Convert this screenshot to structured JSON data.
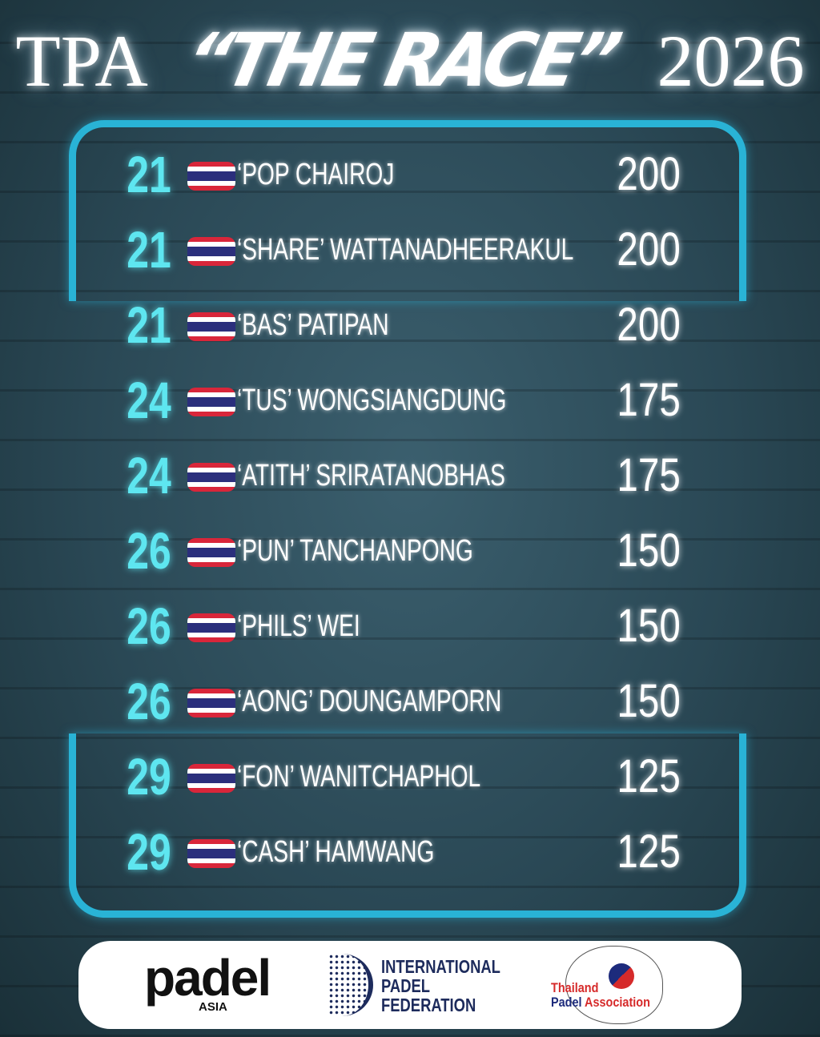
{
  "title": {
    "prefix": "TPA",
    "race": "“THE RACE”",
    "year": "2026"
  },
  "colors": {
    "accent": "#29b3d6",
    "rank": "#5ee6f0",
    "text": "#ffffff",
    "flag_red": "#d9263a",
    "flag_blue": "#2b2f7c"
  },
  "rows": [
    {
      "rank": "21",
      "flag": "thailand-flag",
      "name": "‘POP CHAIROJ",
      "points": "200"
    },
    {
      "rank": "21",
      "flag": "thailand-flag",
      "name": "‘SHARE’ WATTANADHEERAKUL",
      "points": "200"
    },
    {
      "rank": "21",
      "flag": "thailand-flag",
      "name": "‘BAS’ PATIPAN",
      "points": "200"
    },
    {
      "rank": "24",
      "flag": "thailand-flag",
      "name": "‘TUS’ WONGSIANGDUNG",
      "points": "175"
    },
    {
      "rank": "24",
      "flag": "thailand-flag",
      "name": "‘ATITH’ SRIRATANOBHAS",
      "points": "175"
    },
    {
      "rank": "26",
      "flag": "thailand-flag",
      "name": "‘PUN’ TANCHANPONG",
      "points": "150"
    },
    {
      "rank": "26",
      "flag": "thailand-flag",
      "name": "‘PHILS’ WEI",
      "points": "150"
    },
    {
      "rank": "26",
      "flag": "thailand-flag",
      "name": "‘AONG’ DOUNGAMPORN",
      "points": "150"
    },
    {
      "rank": "29",
      "flag": "thailand-flag",
      "name": "‘FON’ WANITCHAPHOL",
      "points": "125"
    },
    {
      "rank": "29",
      "flag": "thailand-flag",
      "name": "‘CASH’ HAMWANG",
      "points": "125"
    }
  ],
  "logos": {
    "padel_asia": {
      "main": "padel",
      "sub": "ASIA"
    },
    "fip": {
      "line1": "INTERNATIONAL",
      "line2": "PADEL",
      "line3": "FEDERATION"
    },
    "tpa": {
      "line1": "Thailand",
      "line2a": "Padel",
      "line2b": "Association"
    }
  }
}
